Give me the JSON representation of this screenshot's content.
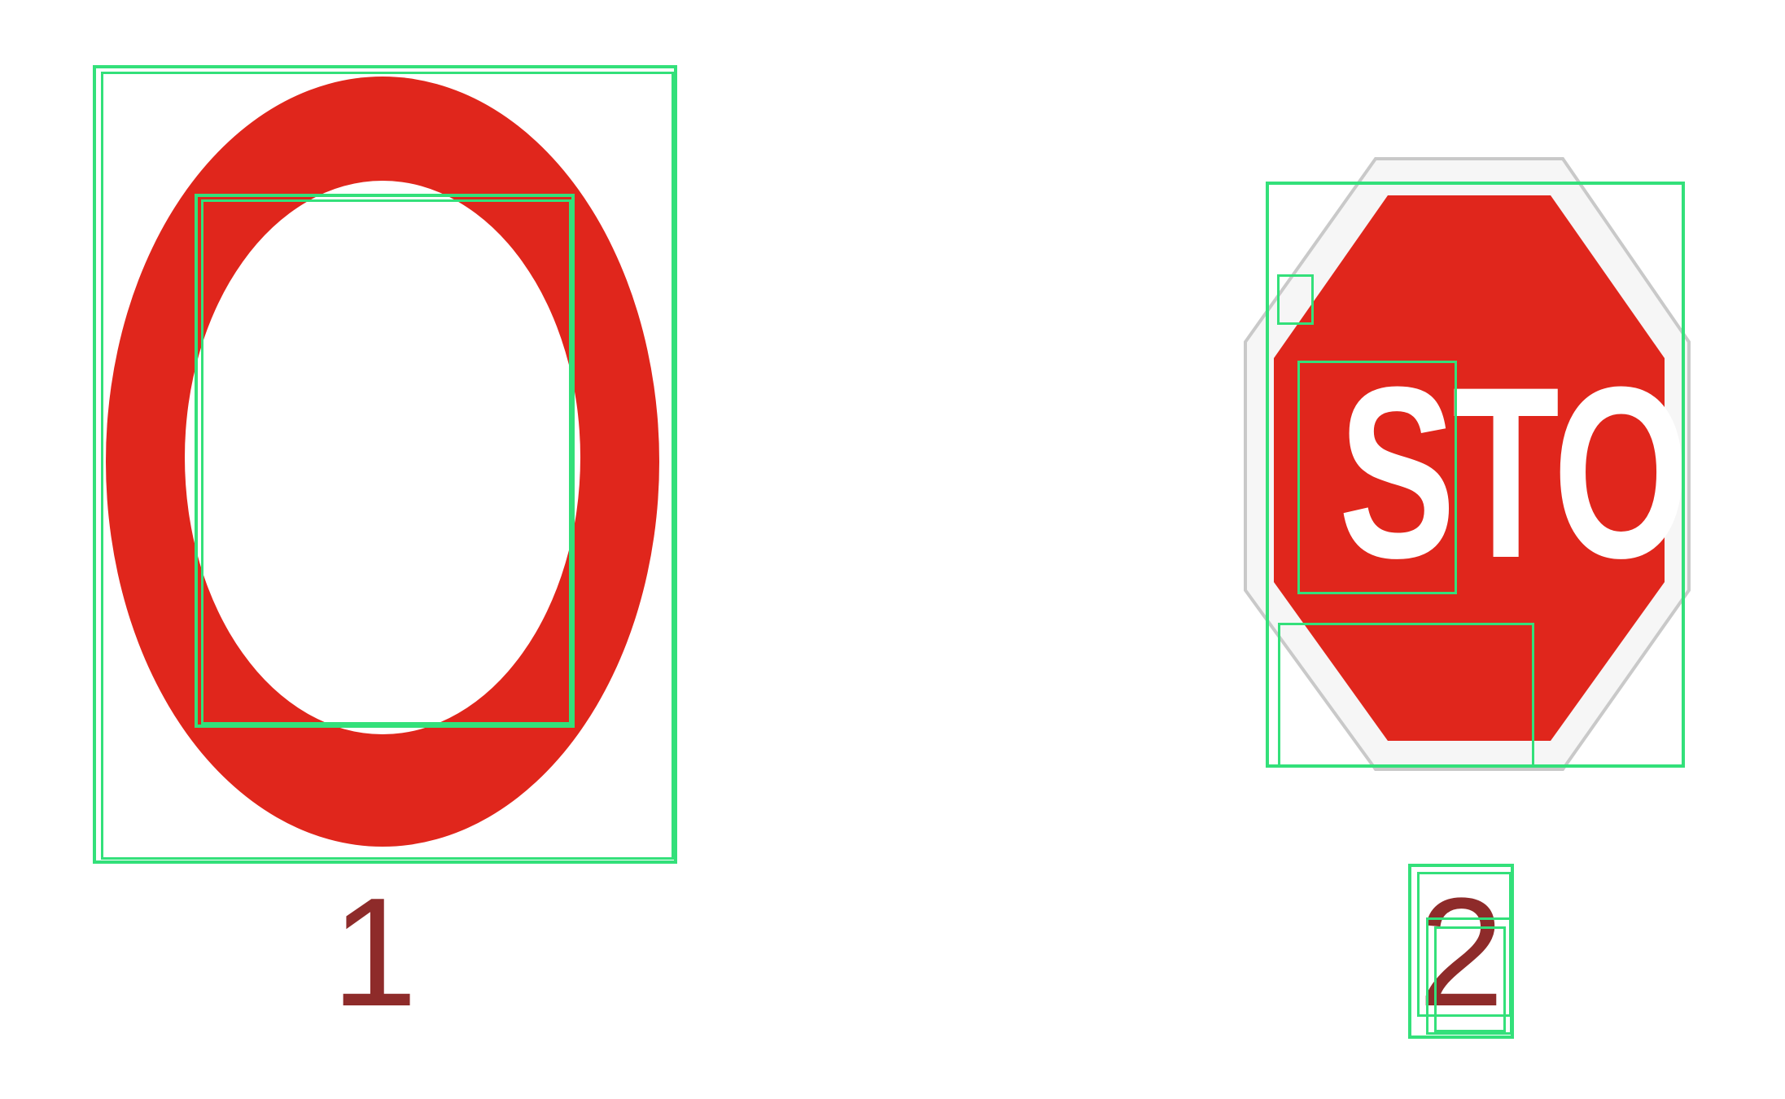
{
  "colors": {
    "sign_red": "#e0261c",
    "label_red": "#8e2b2a",
    "box_green": "#33e07a",
    "background": "#ffffff"
  },
  "signs": [
    {
      "name": "no-vehicles-sign",
      "shape": "ring",
      "number_label": "1"
    },
    {
      "name": "stop-sign",
      "shape": "octagon",
      "sign_text": "STOP",
      "number_label": "2"
    }
  ]
}
